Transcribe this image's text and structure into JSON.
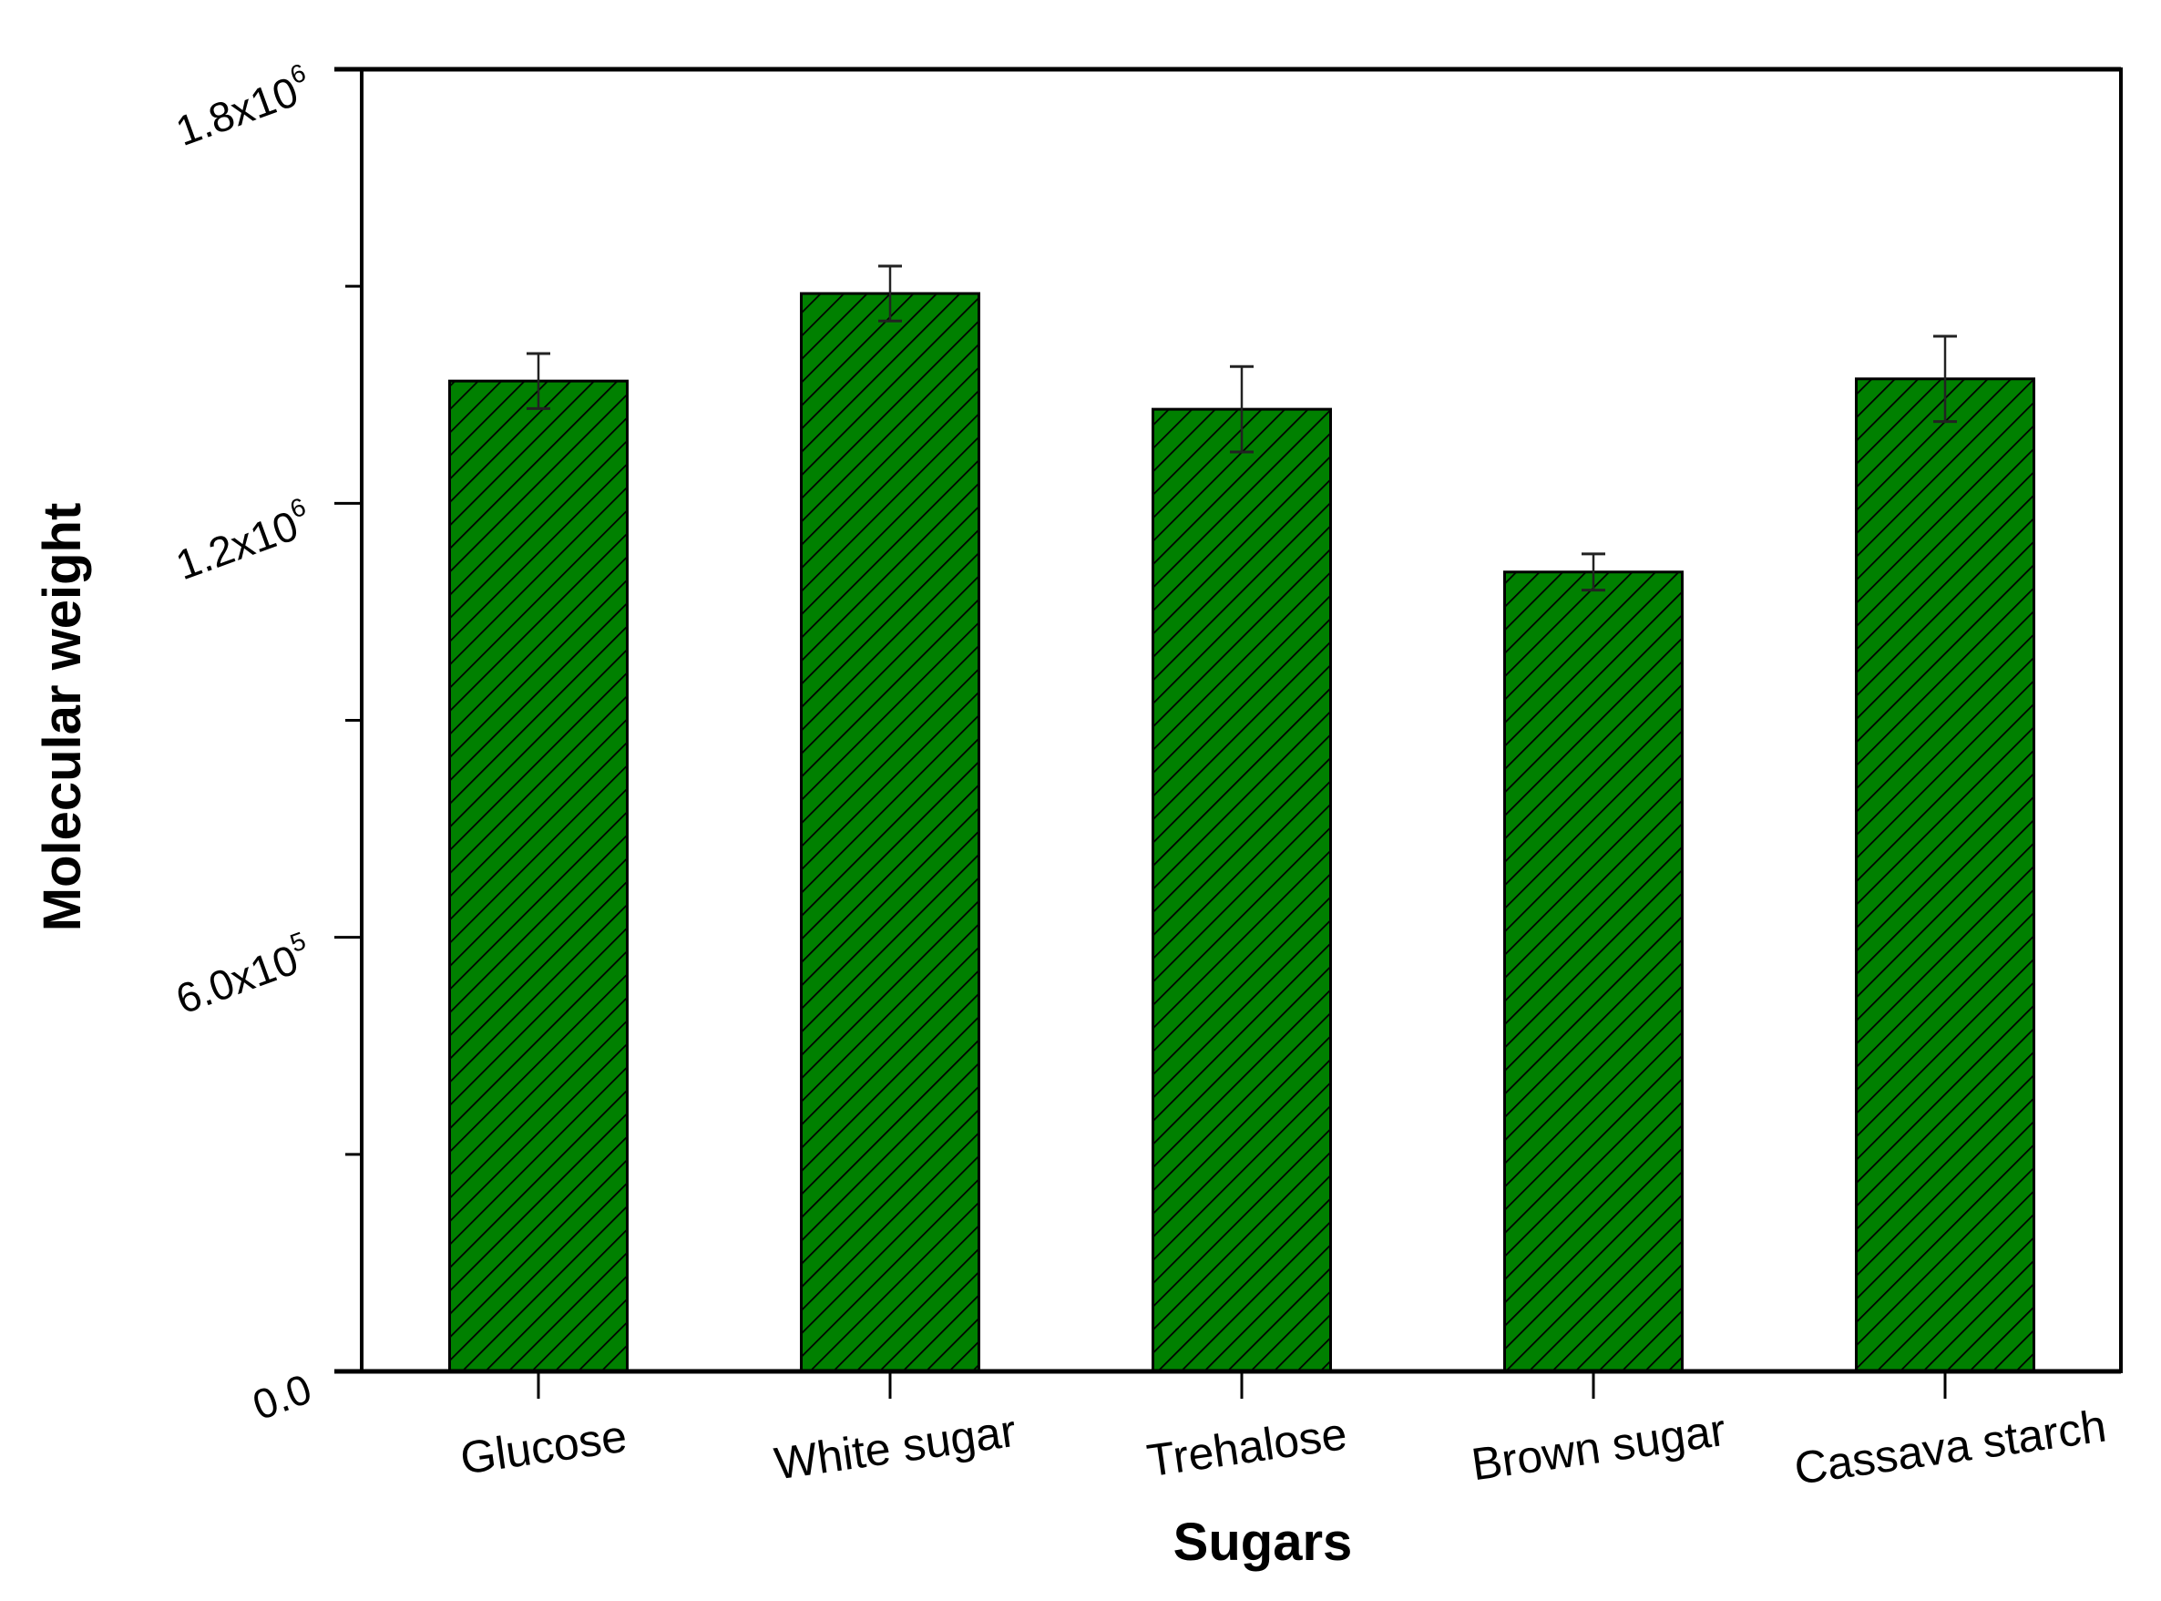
{
  "chart_data": {
    "type": "bar",
    "title": "",
    "xlabel": "Sugars",
    "ylabel": "Molecular weight",
    "categories": [
      "Glucose",
      "White sugar",
      "Trehalose",
      "Brown sugar",
      "Cassava starch"
    ],
    "values": [
      1369000,
      1490000,
      1330000,
      1105000,
      1372000
    ],
    "errors": [
      38000,
      38000,
      59000,
      25000,
      59000
    ],
    "ylim": [
      0,
      1800000
    ],
    "yticks": [
      {
        "value": 0,
        "label": "0.0",
        "base": "0.0",
        "exp": ""
      },
      {
        "value": 600000,
        "label": "6.0x10^5",
        "base": "6.0x10",
        "exp": "5"
      },
      {
        "value": 1200000,
        "label": "1.2x10^6",
        "base": "1.2x10",
        "exp": "6"
      },
      {
        "value": 1800000,
        "label": "1.8x10^6",
        "base": "1.8x10",
        "exp": "6"
      }
    ],
    "yminor_ticks": [
      300000,
      900000,
      1500000
    ],
    "grid": false,
    "legend": null,
    "bar_color": "#008000",
    "bar_hatch": "diagonal lines (black)",
    "error_bars": true
  }
}
